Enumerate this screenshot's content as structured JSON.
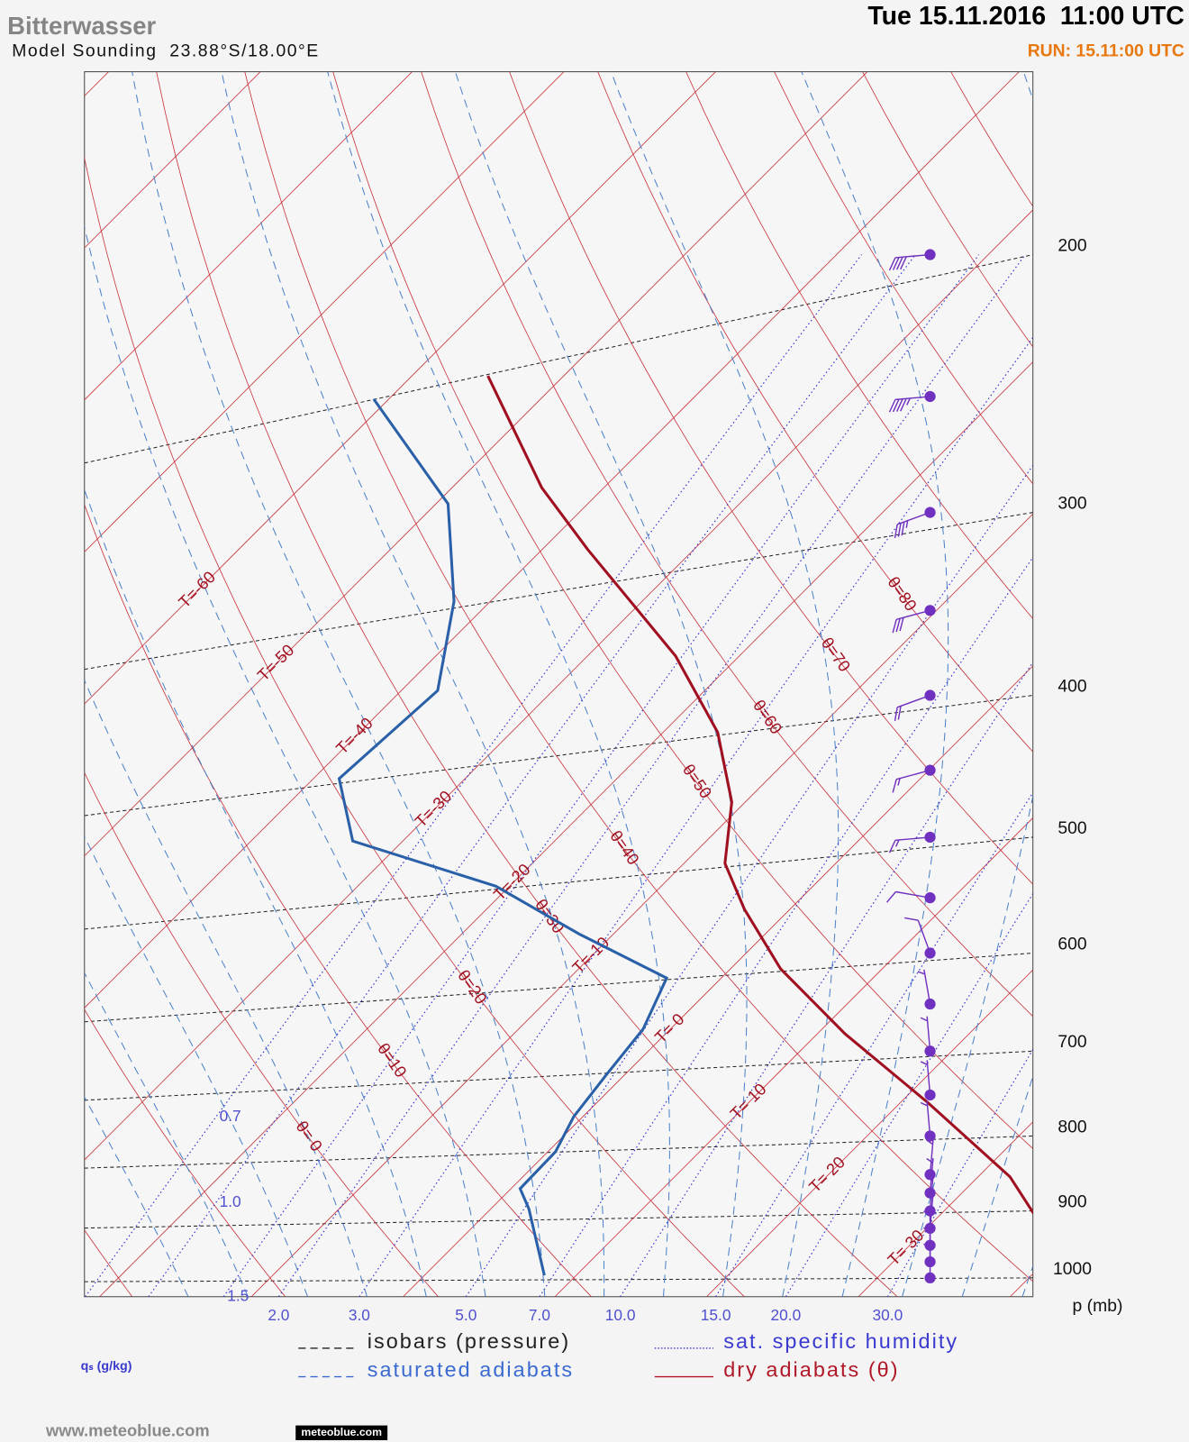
{
  "chart_data": {
    "type": "skewt",
    "title": "Bitterwasser",
    "subtitle": "Model Sounding  23.88°S/18.00°E",
    "date": "Tue 15.11.2016  11:00 UTC",
    "run": "RUN: 15.11:00 UTC",
    "y_label": "p (mb)",
    "ylog": true,
    "ylim": [
      1030,
      150
    ],
    "yticks": [
      200,
      300,
      400,
      500,
      600,
      700,
      800,
      900,
      1000
    ],
    "xlim": [
      -21,
      41.5
    ],
    "isotherms": [
      -100,
      -90,
      -80,
      -70,
      {
        "value": -60,
        "label": "T=-60"
      },
      {
        "value": -50,
        "label": "T=-50"
      },
      {
        "value": -40,
        "label": "T=-40"
      },
      {
        "value": -30,
        "label": "T=-30"
      },
      {
        "value": -20,
        "label": "T=-20"
      },
      {
        "value": -10,
        "label": "T=-10"
      },
      {
        "value": 0,
        "label": "T= 0"
      },
      {
        "value": 10,
        "label": "T= 10"
      },
      {
        "value": 20,
        "label": "T= 20"
      },
      {
        "value": 30,
        "label": "T= 30"
      },
      40,
      50
    ],
    "dry_adiabats": [
      -40,
      -30,
      -20,
      -10,
      {
        "value": 0,
        "label": "θ= 0"
      },
      {
        "value": 10,
        "label": "θ=10"
      },
      {
        "value": 20,
        "label": "θ=20"
      },
      {
        "value": 30,
        "label": "θ=30"
      },
      {
        "value": 40,
        "label": "θ=40"
      },
      {
        "value": 50,
        "label": "θ=50"
      },
      {
        "value": 60,
        "label": "θ=60"
      },
      {
        "value": 70,
        "label": "θ=70"
      },
      {
        "value": 80,
        "label": "θ=80"
      },
      90,
      100,
      110,
      120,
      130,
      140,
      150,
      160,
      170,
      180,
      190,
      200
    ],
    "saturated_adiabats": [
      -16,
      -12,
      -8,
      -4,
      0,
      4,
      8,
      12,
      16,
      20,
      24,
      28,
      32,
      36,
      40,
      44
    ],
    "humidity_lines": [
      0.7,
      {
        "value": 1,
        "label": "1.0"
      },
      1.5,
      {
        "value": 2,
        "label": "2.0"
      },
      {
        "value": 3,
        "label": "3.0"
      },
      {
        "value": 5,
        "label": "5.0"
      },
      {
        "value": 7,
        "label": "7.0"
      },
      {
        "value": 10,
        "label": "10.0"
      },
      {
        "value": 15,
        "label": "15.0"
      },
      {
        "value": 20,
        "label": "20.0"
      },
      {
        "value": 30,
        "label": "30.0"
      }
    ],
    "humidity_label": "qₛ (g/kg)",
    "colors": {
      "isobars": "#222222",
      "isotherms": "#c8323c",
      "dry_adiabats": "#c8323c",
      "saturated_adiabats": "#4a80c8",
      "humidity": "#3a3ad0",
      "labels": "#a01020"
    },
    "legend": [
      {
        "label": "isobars (pressure)",
        "color": "#222222",
        "style": "dashed"
      },
      {
        "label": "saturated adiabats",
        "color": "#3a6ad0",
        "style": "dashed"
      },
      {
        "label": "sat. specific humidity",
        "color": "#3a3ad0",
        "style": "dotted"
      },
      {
        "label": "dry adiabats (θ)",
        "color": "#b01828",
        "style": "solid"
      }
    ],
    "series": [
      {
        "color": "#a01020",
        "pressure": [
          242,
          288.5,
          318,
          376,
          424,
          473,
          521,
          560,
          615,
          681,
          759,
          853,
          904
        ],
        "values": [
          -55.0,
          -44.1,
          -37.0,
          -24.2,
          -16.4,
          -10.9,
          -7.3,
          -3.0,
          3.3,
          11.8,
          21.8,
          32.1,
          36.1
        ]
      },
      {
        "color": "#2a60a8",
        "pressure": [
          251,
          296,
          345,
          397,
          456,
          503,
          540,
          582,
          624,
          676,
          727,
          776,
          820,
          869,
          897,
          996
        ],
        "values": [
          -61.0,
          -49.2,
          -42.4,
          -37.6,
          -38.3,
          -33.3,
          -20.9,
          -12.3,
          -3.6,
          -1.8,
          -1.2,
          -0.6,
          0.5,
          0.6,
          2.5,
          7.9
        ]
      }
    ],
    "wind": {
      "color": "#7030c0",
      "pressure": [
        200,
        250,
        300,
        350,
        400,
        450,
        500,
        550,
        600,
        650,
        700,
        750,
        800,
        850,
        875,
        900,
        925,
        950,
        975,
        1000
      ],
      "speed": [
        40,
        45,
        35,
        30,
        20,
        15,
        15,
        10,
        10,
        5,
        5,
        5,
        5,
        5,
        5,
        5,
        5,
        5,
        5,
        5
      ],
      "direction": [
        265,
        265,
        250,
        255,
        250,
        255,
        265,
        280,
        340,
        350,
        355,
        355,
        355,
        5,
        5,
        5,
        5,
        0,
        0,
        0
      ]
    },
    "footer": "www.meteoblue.com",
    "badge": "meteoblue.com"
  }
}
